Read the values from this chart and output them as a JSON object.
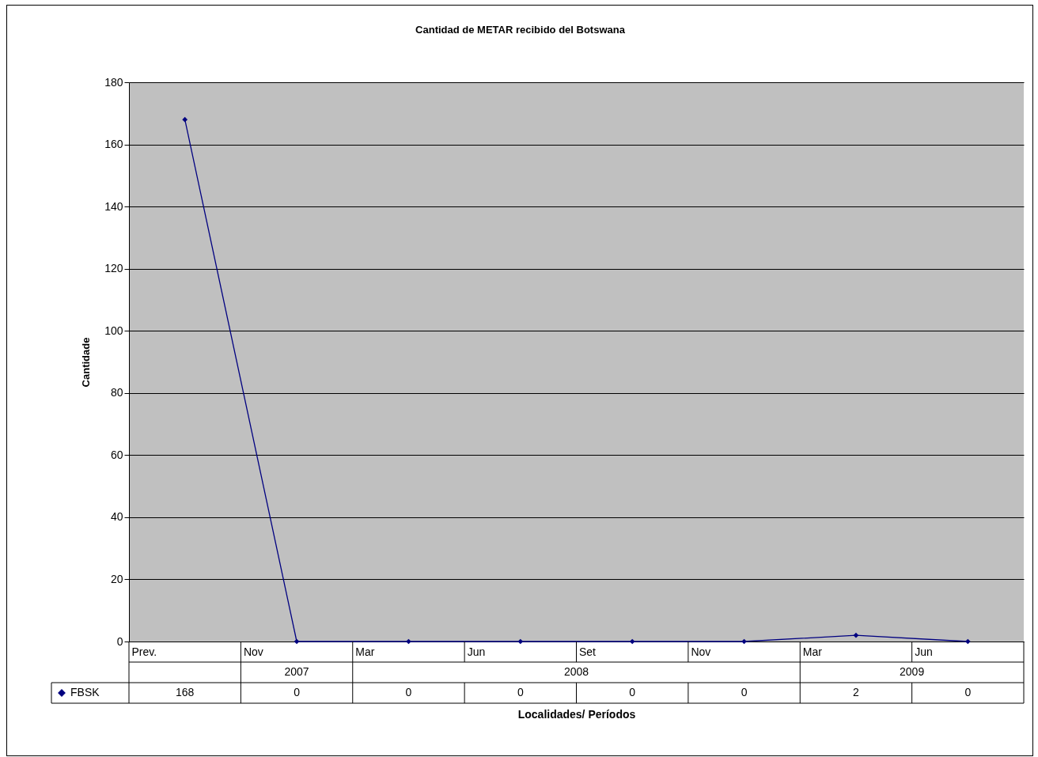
{
  "chart_data": {
    "type": "line",
    "title": "Cantidad de METAR recibido del Botswana",
    "xlabel": "Localidades/ Períodos",
    "ylabel": "Cantidade",
    "categories": [
      "Prev.",
      "Nov",
      "Mar",
      "Jun",
      "Set",
      "Nov",
      "Mar",
      "Jun"
    ],
    "series": [
      {
        "name": "FBSK",
        "color": "#000080",
        "values": [
          168,
          0,
          0,
          0,
          0,
          0,
          2,
          0
        ]
      }
    ],
    "annotations": [
      "2007",
      "2008",
      "2009"
    ],
    "ylim": [
      0,
      180
    ],
    "yticks": [
      0,
      20,
      40,
      60,
      80,
      100,
      120,
      140,
      160,
      180
    ],
    "grid": "y",
    "legend": "bottom left",
    "marker": "diamond",
    "line_style": "solid",
    "data_labels": true
  }
}
